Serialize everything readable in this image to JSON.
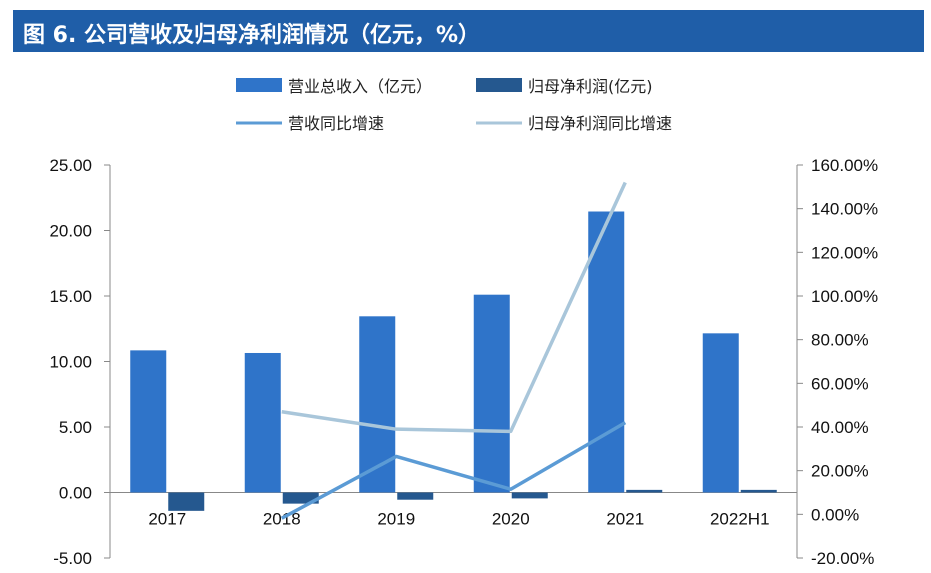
{
  "header": {
    "title": "图 6. 公司营收及归母净利润情况（亿元，%）"
  },
  "colors": {
    "header_bg": "#1f5ea8",
    "revenue": "#2f74c9",
    "net_profit": "#25588f",
    "revenue_growth": "#5b9bd5",
    "profit_growth": "#a9c6da"
  },
  "chart_data": {
    "type": "bar",
    "categories": [
      "2017",
      "2018",
      "2019",
      "2020",
      "2021",
      "2022H1"
    ],
    "series": [
      {
        "name": "营业总收入（亿元）",
        "type": "bar",
        "axis": "left",
        "values": [
          10.85,
          10.65,
          13.45,
          15.1,
          21.45,
          12.15
        ]
      },
      {
        "name": "归母净利润(亿元)",
        "type": "bar",
        "axis": "left",
        "values": [
          -1.4,
          -0.85,
          -0.55,
          -0.45,
          0.2,
          0.2
        ]
      },
      {
        "name": "营收同比增速",
        "type": "line",
        "axis": "right",
        "values": [
          null,
          -1.8,
          26.5,
          11.5,
          42.0,
          null
        ]
      },
      {
        "name": "归母净利润同比增速",
        "type": "line",
        "axis": "right",
        "values": [
          null,
          47.0,
          39.0,
          38.0,
          152.0,
          null
        ]
      }
    ],
    "y_left": {
      "min": -5,
      "max": 25,
      "ticks": [
        "25.00",
        "20.00",
        "15.00",
        "10.00",
        "5.00",
        "0.00",
        "-5.00"
      ]
    },
    "y_right": {
      "min": -20,
      "max": 160,
      "ticks": [
        "160.00%",
        "140.00%",
        "120.00%",
        "100.00%",
        "80.00%",
        "60.00%",
        "40.00%",
        "20.00%",
        "0.00%",
        "-20.00%"
      ]
    },
    "legend_position": "top-center",
    "grid": false
  }
}
